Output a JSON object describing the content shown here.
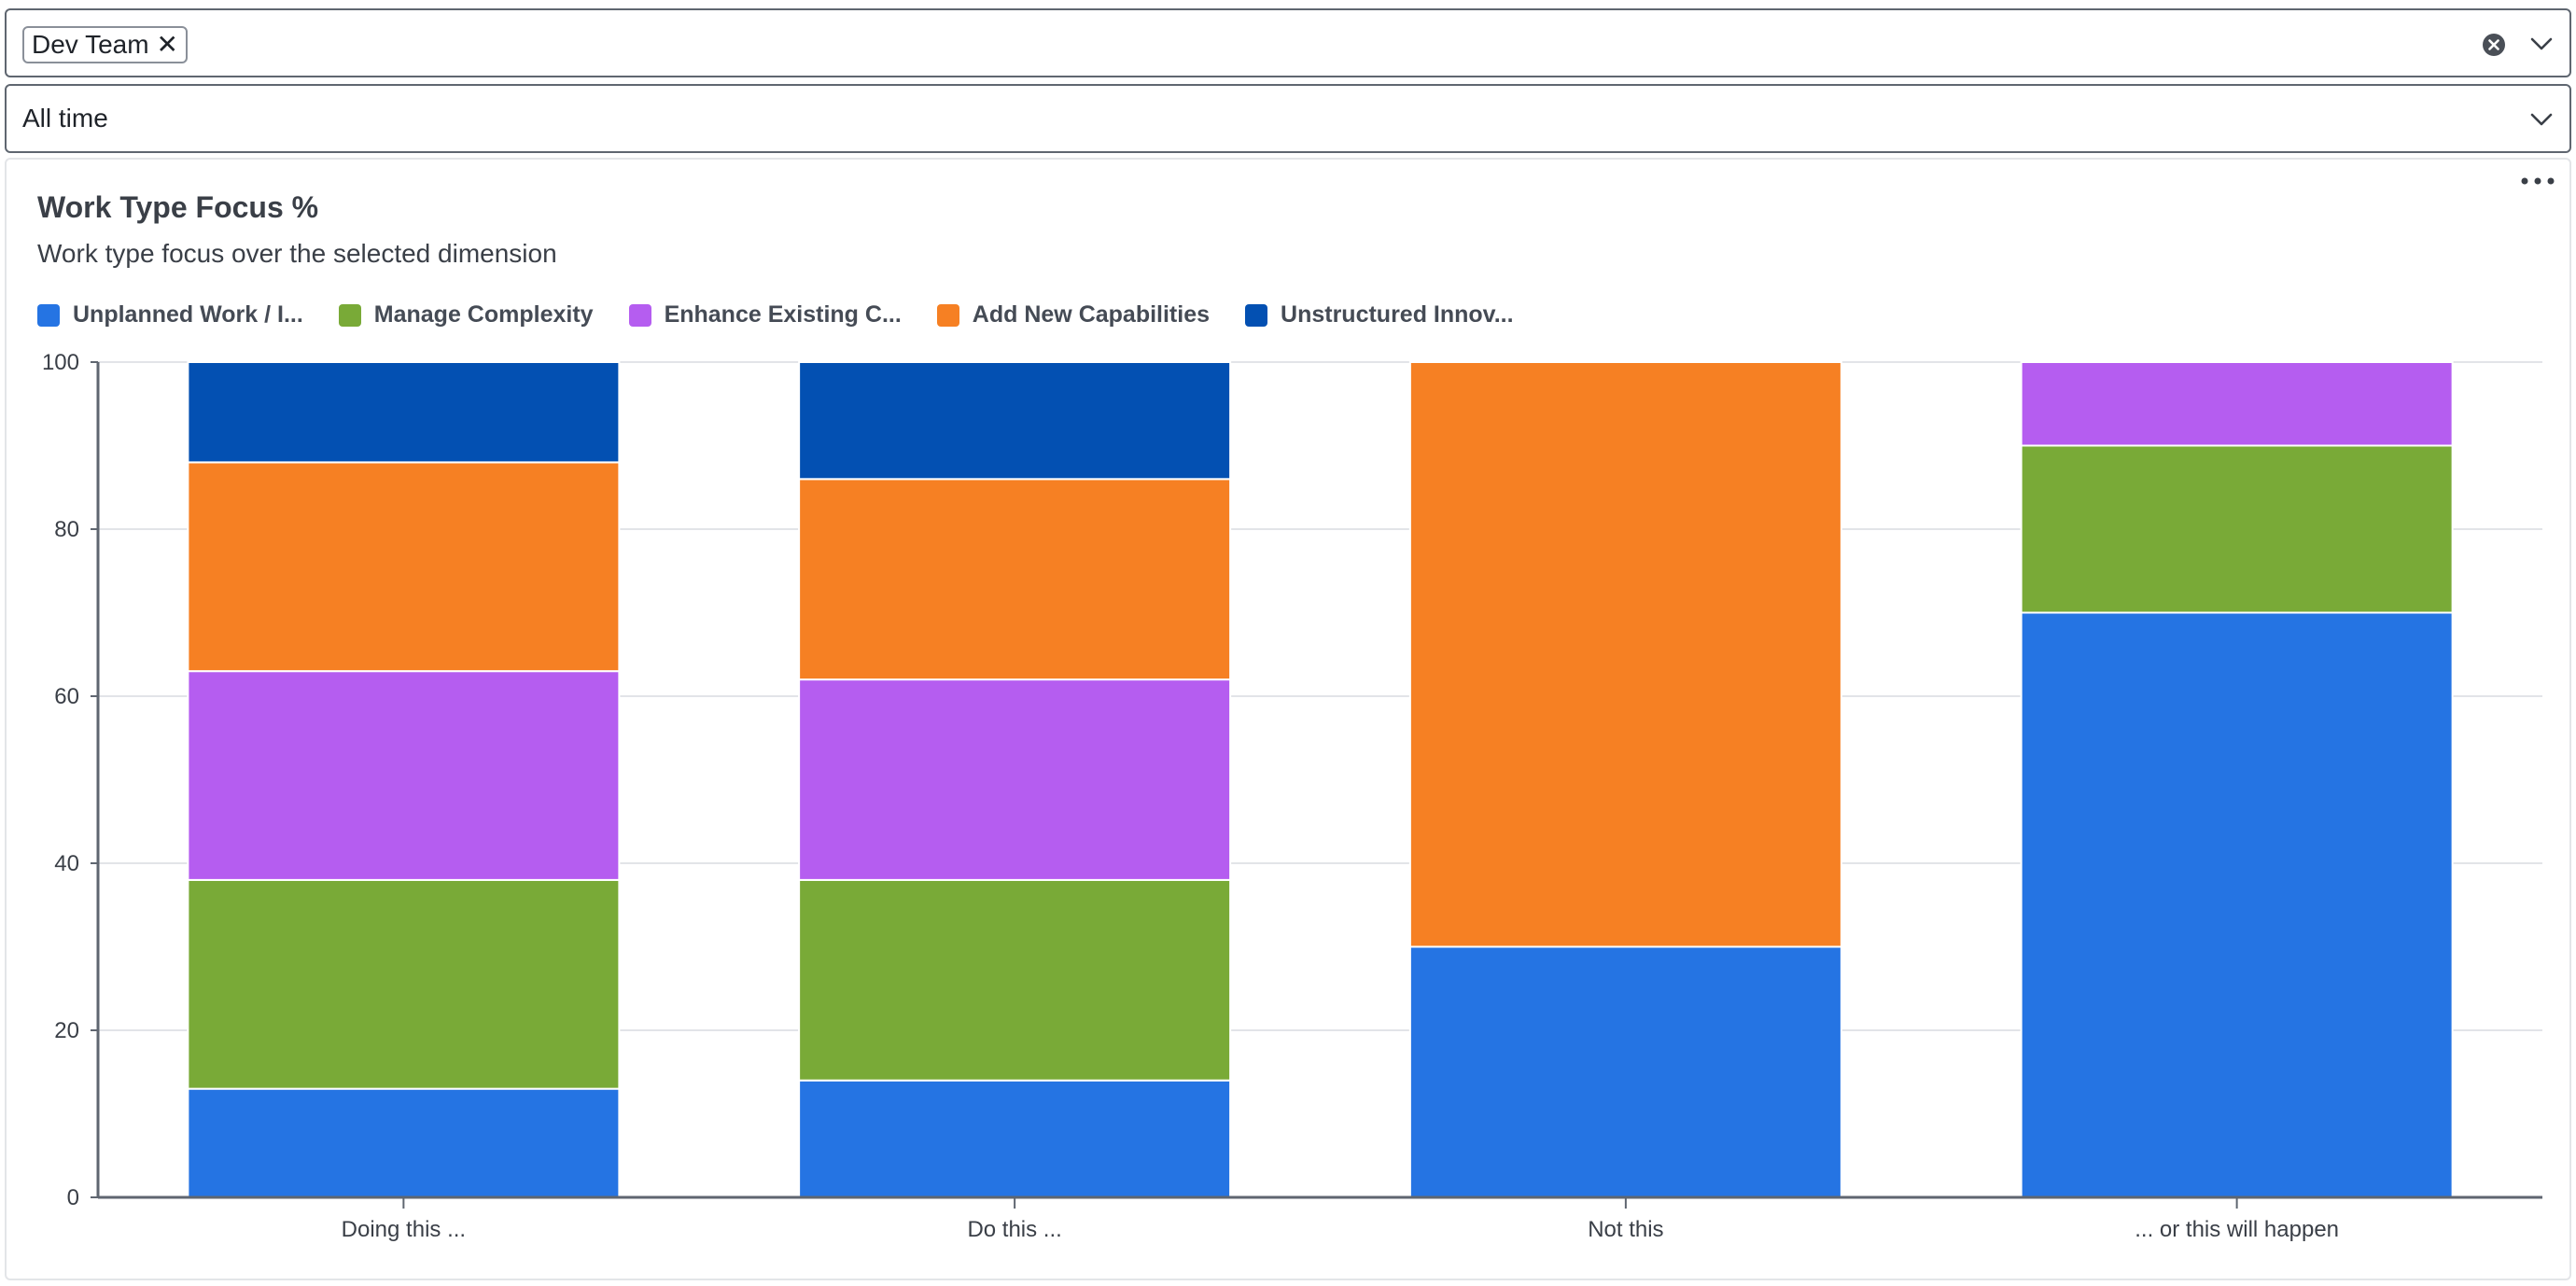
{
  "filters": {
    "team": {
      "chip_label": "Dev Team"
    },
    "time": {
      "value": "All time"
    }
  },
  "chart_data": {
    "type": "bar",
    "stacked": true,
    "title": "Work Type Focus %",
    "subtitle": "Work type focus over the selected dimension",
    "categories": [
      "Doing this ...",
      "Do this ...",
      "Not this",
      "... or this will happen"
    ],
    "series": [
      {
        "name": "Unplanned Work / I...",
        "color": "#2574e3",
        "values": [
          13,
          14,
          30,
          70
        ]
      },
      {
        "name": "Manage Complexity",
        "color": "#79aa37",
        "values": [
          25,
          24,
          0,
          20
        ]
      },
      {
        "name": "Enhance Existing C...",
        "color": "#b55df0",
        "values": [
          25,
          24,
          0,
          10
        ]
      },
      {
        "name": "Add New Capabilities",
        "color": "#f68023",
        "values": [
          25,
          24,
          70,
          0
        ]
      },
      {
        "name": "Unstructured Innov...",
        "color": "#0350b2",
        "values": [
          12,
          14,
          0,
          0
        ]
      }
    ],
    "ylim": [
      0,
      100
    ],
    "yticks": [
      0,
      20,
      40,
      60,
      80,
      100
    ],
    "grid": true,
    "legend": "top-left",
    "xlabel": "",
    "ylabel": ""
  }
}
